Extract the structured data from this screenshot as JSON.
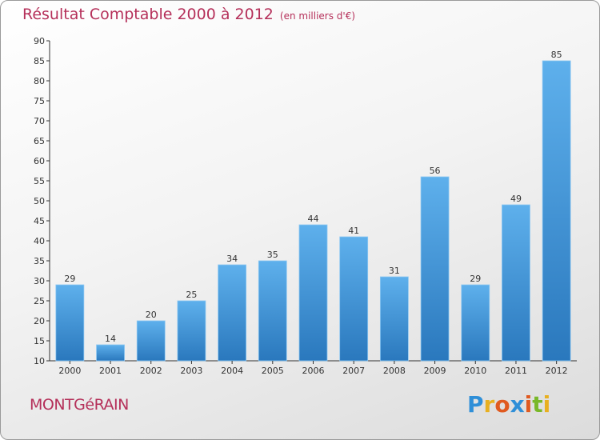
{
  "chart_data": {
    "type": "bar",
    "title": "Résultat Comptable 2000 à 2012",
    "unit_note": "(en milliers d'€)",
    "categories": [
      "2000",
      "2001",
      "2002",
      "2003",
      "2004",
      "2005",
      "2006",
      "2007",
      "2008",
      "2009",
      "2010",
      "2011",
      "2012"
    ],
    "values": [
      29,
      14,
      20,
      25,
      34,
      35,
      44,
      41,
      31,
      56,
      29,
      49,
      85
    ],
    "ylim": [
      10,
      90
    ],
    "yticks": [
      10,
      15,
      20,
      25,
      30,
      35,
      40,
      45,
      50,
      55,
      60,
      65,
      70,
      75,
      80,
      85,
      90
    ],
    "xlabel": "",
    "ylabel": "",
    "grid": false,
    "colors": {
      "bar_light": "#5eb0ec",
      "bar_dark": "#2a78bd",
      "title": "#b5305a"
    }
  },
  "location": "MONTGéRAIN",
  "brand": {
    "letters": [
      "P",
      "r",
      "o",
      "x",
      "i",
      "t",
      "i"
    ],
    "colors": [
      "#2f8fd8",
      "#e8b020",
      "#e05a20",
      "#2f8fd8",
      "#e05a20",
      "#79b829",
      "#e8b020"
    ]
  }
}
